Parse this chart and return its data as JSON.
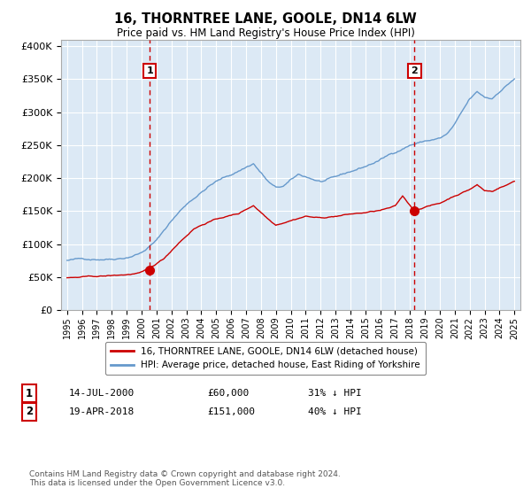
{
  "title": "16, THORNTREE LANE, GOOLE, DN14 6LW",
  "subtitle": "Price paid vs. HM Land Registry's House Price Index (HPI)",
  "background_color": "#dce9f5",
  "hpi_color": "#6699cc",
  "price_color": "#cc0000",
  "vline_color": "#cc0000",
  "sale1_x": 2000.54,
  "sale1_y": 60000,
  "sale1_label": "1",
  "sale2_x": 2018.3,
  "sale2_y": 151000,
  "sale2_label": "2",
  "xmin": 1994.6,
  "xmax": 2025.4,
  "ymin": 0,
  "ymax": 410000,
  "yticks": [
    0,
    50000,
    100000,
    150000,
    200000,
    250000,
    300000,
    350000,
    400000
  ],
  "xtick_years": [
    1995,
    1996,
    1997,
    1998,
    1999,
    2000,
    2001,
    2002,
    2003,
    2004,
    2005,
    2006,
    2007,
    2008,
    2009,
    2010,
    2011,
    2012,
    2013,
    2014,
    2015,
    2016,
    2017,
    2018,
    2019,
    2020,
    2021,
    2022,
    2023,
    2024,
    2025
  ],
  "legend1_label": "16, THORNTREE LANE, GOOLE, DN14 6LW (detached house)",
  "legend2_label": "HPI: Average price, detached house, East Riding of Yorkshire",
  "annotation1_date": "14-JUL-2000",
  "annotation1_price": "£60,000",
  "annotation1_hpi": "31% ↓ HPI",
  "annotation2_date": "19-APR-2018",
  "annotation2_price": "£151,000",
  "annotation2_hpi": "40% ↓ HPI",
  "footer": "Contains HM Land Registry data © Crown copyright and database right 2024.\nThis data is licensed under the Open Government Licence v3.0."
}
